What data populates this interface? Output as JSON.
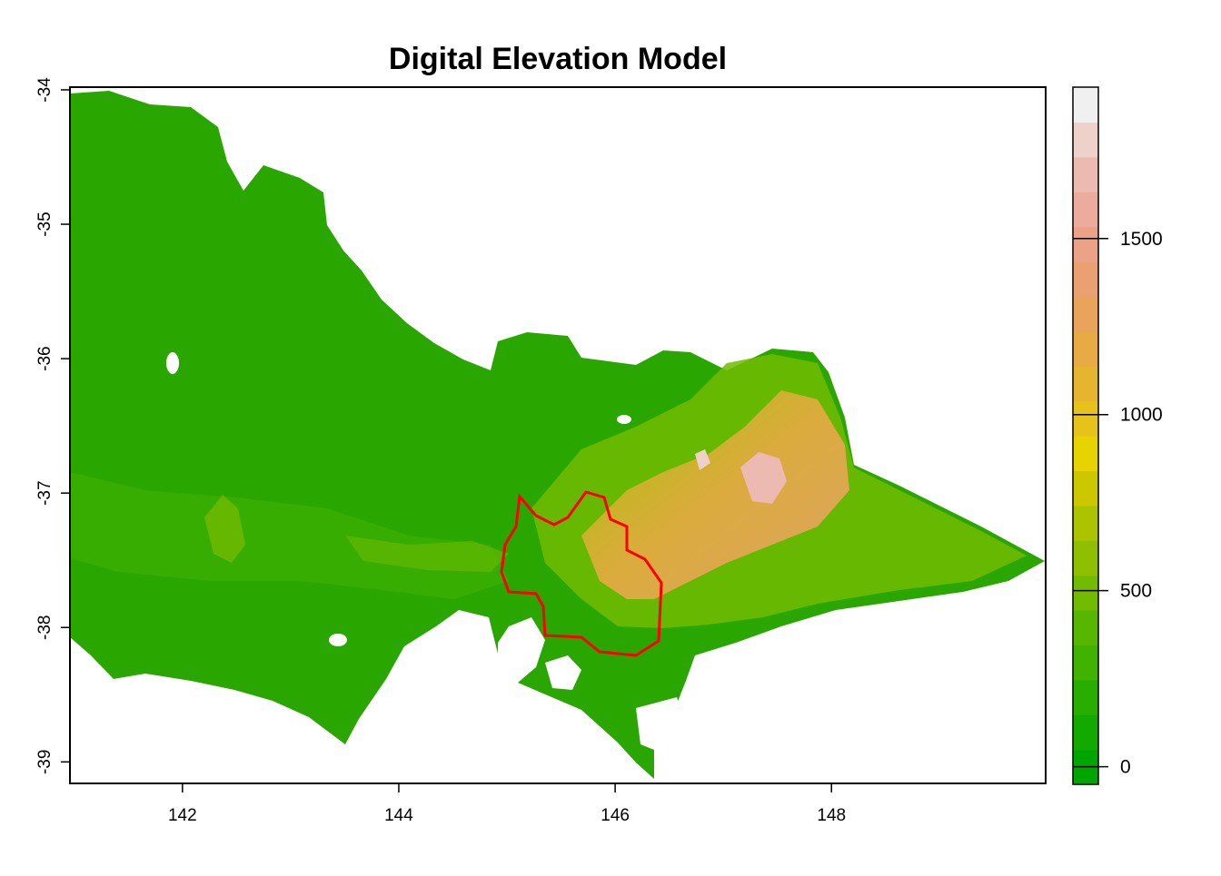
{
  "title": "Digital Elevation Model",
  "map": {
    "x_range": [
      140.96,
      149.98
    ],
    "y_range": [
      -39.16,
      -33.98
    ],
    "x_ticks": [
      142,
      144,
      146,
      148
    ],
    "x_tick_labels": [
      "142",
      "144",
      "146",
      "148"
    ],
    "y_ticks": [
      -34,
      -35,
      -36,
      -37,
      -38,
      -39
    ],
    "y_tick_labels": [
      "-34",
      "-35",
      "-36",
      "-37",
      "-38",
      "-39"
    ],
    "land_color": "#2aa600",
    "boundary_color": "#ff0000",
    "colorbar": {
      "min": -50,
      "max": 1930,
      "ticks": [
        0,
        500,
        1000,
        1500
      ],
      "tick_labels": [
        "0",
        "500",
        "1000",
        "1500"
      ],
      "colors": [
        "#00a600",
        "#13aa00",
        "#28ae00",
        "#3fb300",
        "#57b700",
        "#71bb00",
        "#8ebf00",
        "#acc300",
        "#ccc800",
        "#e6d300",
        "#e6c21a",
        "#e7b42f",
        "#e8aa44",
        "#e9a35a",
        "#eaa070",
        "#eba286",
        "#ecab9c",
        "#edbab2",
        "#eed1c9",
        "#f0f0f0"
      ]
    }
  }
}
